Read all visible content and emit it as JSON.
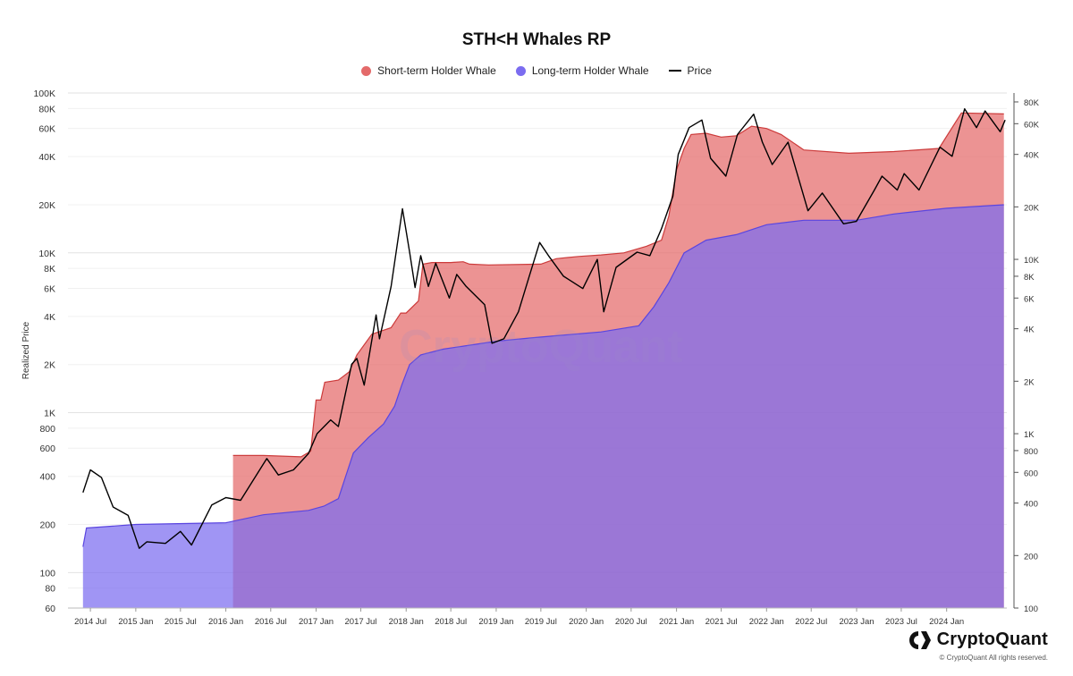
{
  "header": {
    "title": "STH<H Whales RP"
  },
  "legend": {
    "items": [
      {
        "label": "Short-term Holder Whale",
        "color": "#e46a6a"
      },
      {
        "label": "Long-term Holder Whale",
        "color": "#7b6cf0"
      },
      {
        "label": "Price",
        "color": "#000000"
      }
    ]
  },
  "watermark": "CryptoQuant",
  "brand": {
    "name": "CryptoQuant",
    "copyright": "© CryptoQuant All rights reserved.",
    "icon": "cryptoquant-logo-icon"
  },
  "chart_data": {
    "type": "area",
    "ylabel": "Realized Price",
    "y_scale": "log",
    "ylim": [
      60,
      100000
    ],
    "y_ticks": [
      "100K",
      "80K",
      "60K",
      "40K",
      "20K",
      "10K",
      "8K",
      "6K",
      "4K",
      "2K",
      "1K",
      "800",
      "600",
      "400",
      "200",
      "100",
      "80",
      "60"
    ],
    "y2_scale": "log",
    "y2lim": [
      100,
      90000
    ],
    "y2_ticks": [
      "80K",
      "60K",
      "40K",
      "20K",
      "10K",
      "8K",
      "6K",
      "4K",
      "2K",
      "1K",
      "800",
      "600",
      "400",
      "200",
      "100"
    ],
    "x_ticks": [
      "2014 Jul",
      "2015 Jan",
      "2015 Jul",
      "2016 Jan",
      "2016 Jul",
      "2017 Jan",
      "2017 Jul",
      "2018 Jan",
      "2018 Jul",
      "2019 Jan",
      "2019 Jul",
      "2020 Jan",
      "2020 Jul",
      "2021 Jan",
      "2021 Jul",
      "2022 Jan",
      "2022 Jul",
      "2023 Jan",
      "2023 Jul",
      "2024 Jan"
    ],
    "xlim": [
      "2014-04-01",
      "2024-09-01"
    ],
    "series": [
      {
        "name": "Short-term Holder Whale",
        "axis": "left",
        "color": "#e46a6a",
        "points": [
          [
            "2016-01-30",
            540
          ],
          [
            "2016-06-01",
            540
          ],
          [
            "2016-11-01",
            530
          ],
          [
            "2016-12-10",
            575
          ],
          [
            "2017-01-01",
            1200
          ],
          [
            "2017-01-20",
            1200
          ],
          [
            "2017-02-05",
            1550
          ],
          [
            "2017-04-01",
            1600
          ],
          [
            "2017-05-15",
            1800
          ],
          [
            "2017-06-15",
            2300
          ],
          [
            "2017-08-15",
            3100
          ],
          [
            "2017-11-01",
            3400
          ],
          [
            "2017-12-10",
            4200
          ],
          [
            "2018-01-01",
            4200
          ],
          [
            "2018-02-20",
            5000
          ],
          [
            "2018-03-10",
            8500
          ],
          [
            "2018-04-15",
            8700
          ],
          [
            "2018-07-01",
            8700
          ],
          [
            "2018-08-20",
            8800
          ],
          [
            "2018-09-15",
            8500
          ],
          [
            "2018-12-01",
            8400
          ],
          [
            "2019-07-01",
            8500
          ],
          [
            "2019-09-01",
            9200
          ],
          [
            "2019-12-01",
            9500
          ],
          [
            "2020-03-01",
            9700
          ],
          [
            "2020-06-01",
            10000
          ],
          [
            "2020-09-01",
            11000
          ],
          [
            "2020-11-01",
            12000
          ],
          [
            "2020-12-01",
            17000
          ],
          [
            "2021-01-01",
            33000
          ],
          [
            "2021-02-01",
            45000
          ],
          [
            "2021-03-01",
            55000
          ],
          [
            "2021-05-01",
            56000
          ],
          [
            "2021-07-01",
            53000
          ],
          [
            "2021-09-01",
            54000
          ],
          [
            "2021-11-01",
            62000
          ],
          [
            "2022-01-01",
            60000
          ],
          [
            "2022-03-01",
            55000
          ],
          [
            "2022-06-01",
            44000
          ],
          [
            "2022-12-01",
            42000
          ],
          [
            "2023-06-01",
            43000
          ],
          [
            "2023-12-01",
            45000
          ],
          [
            "2024-03-01",
            75000
          ],
          [
            "2024-08-20",
            74000
          ]
        ]
      },
      {
        "name": "Long-term Holder Whale",
        "axis": "left",
        "color": "#7b6cf0",
        "points": [
          [
            "2014-06-01",
            145
          ],
          [
            "2014-06-15",
            190
          ],
          [
            "2015-01-01",
            200
          ],
          [
            "2016-01-01",
            205
          ],
          [
            "2016-06-01",
            230
          ],
          [
            "2016-12-01",
            245
          ],
          [
            "2017-02-01",
            260
          ],
          [
            "2017-04-01",
            290
          ],
          [
            "2017-05-01",
            400
          ],
          [
            "2017-06-01",
            560
          ],
          [
            "2017-08-01",
            700
          ],
          [
            "2017-10-01",
            850
          ],
          [
            "2017-11-15",
            1100
          ],
          [
            "2017-12-15",
            1500
          ],
          [
            "2018-01-15",
            2000
          ],
          [
            "2018-03-01",
            2300
          ],
          [
            "2018-06-01",
            2500
          ],
          [
            "2019-01-01",
            2800
          ],
          [
            "2019-06-01",
            2950
          ],
          [
            "2020-03-01",
            3200
          ],
          [
            "2020-08-01",
            3500
          ],
          [
            "2020-10-01",
            4600
          ],
          [
            "2020-12-01",
            6500
          ],
          [
            "2021-02-01",
            10000
          ],
          [
            "2021-05-01",
            12000
          ],
          [
            "2021-09-01",
            13000
          ],
          [
            "2022-01-01",
            15000
          ],
          [
            "2022-06-01",
            16000
          ],
          [
            "2023-01-01",
            16000
          ],
          [
            "2023-06-01",
            17500
          ],
          [
            "2024-01-01",
            19000
          ],
          [
            "2024-08-20",
            20000
          ]
        ]
      },
      {
        "name": "Price",
        "axis": "right",
        "color": "#000000",
        "points": [
          [
            "2014-06-01",
            460
          ],
          [
            "2014-07-01",
            620
          ],
          [
            "2014-08-15",
            560
          ],
          [
            "2014-10-01",
            380
          ],
          [
            "2014-12-01",
            340
          ],
          [
            "2015-01-15",
            220
          ],
          [
            "2015-02-15",
            240
          ],
          [
            "2015-05-01",
            235
          ],
          [
            "2015-07-01",
            275
          ],
          [
            "2015-08-15",
            230
          ],
          [
            "2015-11-05",
            390
          ],
          [
            "2016-01-01",
            430
          ],
          [
            "2016-03-01",
            415
          ],
          [
            "2016-06-15",
            720
          ],
          [
            "2016-08-01",
            580
          ],
          [
            "2016-10-01",
            620
          ],
          [
            "2016-12-01",
            770
          ],
          [
            "2017-01-05",
            1000
          ],
          [
            "2017-03-01",
            1200
          ],
          [
            "2017-04-01",
            1100
          ],
          [
            "2017-05-25",
            2500
          ],
          [
            "2017-06-15",
            2700
          ],
          [
            "2017-07-15",
            1900
          ],
          [
            "2017-09-01",
            4800
          ],
          [
            "2017-09-15",
            3500
          ],
          [
            "2017-11-01",
            7000
          ],
          [
            "2017-12-17",
            19500
          ],
          [
            "2018-01-15",
            11000
          ],
          [
            "2018-02-06",
            6900
          ],
          [
            "2018-03-01",
            10500
          ],
          [
            "2018-04-01",
            7000
          ],
          [
            "2018-05-01",
            9500
          ],
          [
            "2018-06-25",
            6000
          ],
          [
            "2018-07-25",
            8200
          ],
          [
            "2018-09-01",
            7000
          ],
          [
            "2018-11-15",
            5500
          ],
          [
            "2018-12-15",
            3300
          ],
          [
            "2019-02-01",
            3500
          ],
          [
            "2019-04-01",
            5000
          ],
          [
            "2019-05-15",
            8000
          ],
          [
            "2019-06-26",
            12500
          ],
          [
            "2019-08-01",
            10500
          ],
          [
            "2019-10-01",
            8000
          ],
          [
            "2019-12-18",
            6800
          ],
          [
            "2020-02-15",
            10000
          ],
          [
            "2020-03-12",
            5000
          ],
          [
            "2020-05-01",
            9000
          ],
          [
            "2020-07-25",
            11000
          ],
          [
            "2020-09-15",
            10500
          ],
          [
            "2020-11-01",
            15000
          ],
          [
            "2020-12-17",
            23000
          ],
          [
            "2021-01-08",
            40000
          ],
          [
            "2021-02-21",
            57000
          ],
          [
            "2021-04-14",
            63000
          ],
          [
            "2021-05-19",
            38000
          ],
          [
            "2021-07-20",
            30000
          ],
          [
            "2021-09-05",
            52000
          ],
          [
            "2021-11-10",
            68000
          ],
          [
            "2021-12-15",
            47000
          ],
          [
            "2022-01-24",
            35000
          ],
          [
            "2022-03-29",
            47000
          ],
          [
            "2022-06-18",
            19000
          ],
          [
            "2022-08-15",
            24000
          ],
          [
            "2022-11-09",
            16000
          ],
          [
            "2022-12-31",
            16500
          ],
          [
            "2023-03-14",
            25000
          ],
          [
            "2023-04-14",
            30000
          ],
          [
            "2023-06-15",
            25000
          ],
          [
            "2023-07-13",
            31000
          ],
          [
            "2023-09-11",
            25000
          ],
          [
            "2023-12-05",
            44000
          ],
          [
            "2024-01-23",
            39000
          ],
          [
            "2024-03-14",
            73000
          ],
          [
            "2024-05-01",
            57000
          ],
          [
            "2024-06-05",
            71000
          ],
          [
            "2024-08-05",
            54000
          ],
          [
            "2024-08-25",
            63000
          ]
        ]
      }
    ]
  }
}
